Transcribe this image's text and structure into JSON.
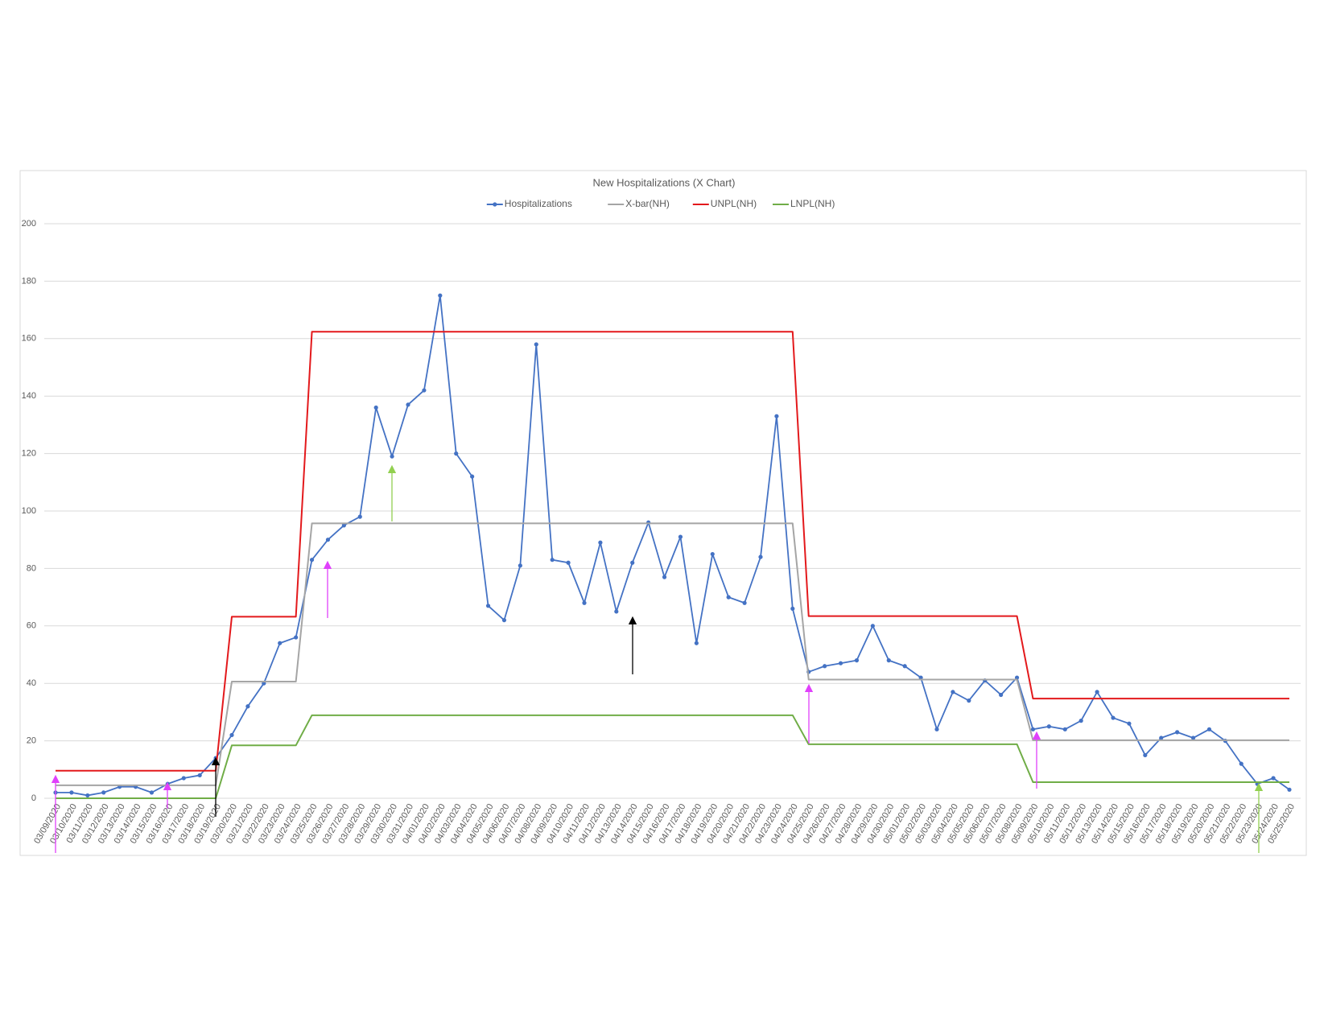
{
  "chart_data": {
    "type": "line",
    "title": "New Hospitalizations (X Chart)",
    "categories": [
      "03/09/2020",
      "03/10/2020",
      "03/11/2020",
      "03/12/2020",
      "03/13/2020",
      "03/14/2020",
      "03/15/2020",
      "03/16/2020",
      "03/17/2020",
      "03/18/2020",
      "03/19/2020",
      "03/20/2020",
      "03/21/2020",
      "03/22/2020",
      "03/23/2020",
      "03/24/2020",
      "03/25/2020",
      "03/26/2020",
      "03/27/2020",
      "03/28/2020",
      "03/29/2020",
      "03/30/2020",
      "03/31/2020",
      "04/01/2020",
      "04/02/2020",
      "04/03/2020",
      "04/04/2020",
      "04/05/2020",
      "04/06/2020",
      "04/07/2020",
      "04/08/2020",
      "04/09/2020",
      "04/10/2020",
      "04/11/2020",
      "04/12/2020",
      "04/13/2020",
      "04/14/2020",
      "04/15/2020",
      "04/16/2020",
      "04/17/2020",
      "04/18/2020",
      "04/19/2020",
      "04/20/2020",
      "04/21/2020",
      "04/22/2020",
      "04/23/2020",
      "04/24/2020",
      "04/25/2020",
      "04/26/2020",
      "04/27/2020",
      "04/28/2020",
      "04/29/2020",
      "04/30/2020",
      "05/01/2020",
      "05/02/2020",
      "05/03/2020",
      "05/04/2020",
      "05/05/2020",
      "05/06/2020",
      "05/07/2020",
      "05/08/2020",
      "05/09/2020",
      "05/10/2020",
      "05/11/2020",
      "05/12/2020",
      "05/13/2020",
      "05/14/2020",
      "05/15/2020",
      "05/16/2020",
      "05/17/2020",
      "05/18/2020",
      "05/19/2020",
      "05/20/2020",
      "05/21/2020",
      "05/22/2020",
      "05/23/2020",
      "05/24/2020",
      "05/25/2020"
    ],
    "series": [
      {
        "name": "Hospitalizations",
        "color": "#4472c4",
        "markers": true,
        "values": [
          2,
          2,
          1,
          2,
          4,
          4,
          2,
          5,
          7,
          8,
          14,
          22,
          32,
          40,
          54,
          56,
          83,
          90,
          95,
          98,
          136,
          119,
          137,
          142,
          175,
          120,
          112,
          67,
          62,
          81,
          158,
          83,
          82,
          68,
          89,
          65,
          82,
          96,
          77,
          91,
          54,
          85,
          70,
          68,
          84,
          133,
          66,
          44,
          46,
          47,
          48,
          60,
          48,
          46,
          42,
          24,
          37,
          34,
          41,
          36,
          42,
          24,
          25,
          24,
          27,
          37,
          28,
          26,
          15,
          21,
          23,
          21,
          24,
          20,
          12,
          5,
          7,
          3
        ]
      },
      {
        "name": "X-bar(NH)",
        "color": "#a5a5a5",
        "markers": false,
        "values": [
          4.5,
          4.5,
          4.5,
          4.5,
          4.5,
          4.5,
          4.5,
          4.5,
          4.5,
          4.5,
          4.5,
          40.6,
          40.6,
          40.6,
          40.6,
          40.6,
          95.7,
          95.7,
          95.7,
          95.7,
          95.7,
          95.7,
          95.7,
          95.7,
          95.7,
          95.7,
          95.7,
          95.7,
          95.7,
          95.7,
          95.7,
          95.7,
          95.7,
          95.7,
          95.7,
          95.7,
          95.7,
          95.7,
          95.7,
          95.7,
          95.7,
          95.7,
          95.7,
          95.7,
          95.7,
          95.7,
          95.7,
          41.3,
          41.3,
          41.3,
          41.3,
          41.3,
          41.3,
          41.3,
          41.3,
          41.3,
          41.3,
          41.3,
          41.3,
          41.3,
          41.3,
          20.2,
          20.2,
          20.2,
          20.2,
          20.2,
          20.2,
          20.2,
          20.2,
          20.2,
          20.2,
          20.2,
          20.2,
          20.2,
          20.2,
          20.2,
          20.2,
          20.2
        ]
      },
      {
        "name": "UNPL(NH)",
        "color": "#e3191c",
        "markers": false,
        "values": [
          9.6,
          9.6,
          9.6,
          9.6,
          9.6,
          9.6,
          9.6,
          9.6,
          9.6,
          9.6,
          9.6,
          63.2,
          63.2,
          63.2,
          63.2,
          63.2,
          162.4,
          162.4,
          162.4,
          162.4,
          162.4,
          162.4,
          162.4,
          162.4,
          162.4,
          162.4,
          162.4,
          162.4,
          162.4,
          162.4,
          162.4,
          162.4,
          162.4,
          162.4,
          162.4,
          162.4,
          162.4,
          162.4,
          162.4,
          162.4,
          162.4,
          162.4,
          162.4,
          162.4,
          162.4,
          162.4,
          162.4,
          63.4,
          63.4,
          63.4,
          63.4,
          63.4,
          63.4,
          63.4,
          63.4,
          63.4,
          63.4,
          63.4,
          63.4,
          63.4,
          63.4,
          34.7,
          34.7,
          34.7,
          34.7,
          34.7,
          34.7,
          34.7,
          34.7,
          34.7,
          34.7,
          34.7,
          34.7,
          34.7,
          34.7,
          34.7,
          34.7,
          34.7
        ]
      },
      {
        "name": "LNPL(NH)",
        "color": "#70ad47",
        "markers": false,
        "values": [
          0,
          0,
          0,
          0,
          0,
          0,
          0,
          0,
          0,
          0,
          0,
          18.4,
          18.4,
          18.4,
          18.4,
          18.4,
          28.9,
          28.9,
          28.9,
          28.9,
          28.9,
          28.9,
          28.9,
          28.9,
          28.9,
          28.9,
          28.9,
          28.9,
          28.9,
          28.9,
          28.9,
          28.9,
          28.9,
          28.9,
          28.9,
          28.9,
          28.9,
          28.9,
          28.9,
          28.9,
          28.9,
          28.9,
          28.9,
          28.9,
          28.9,
          28.9,
          28.9,
          18.8,
          18.8,
          18.8,
          18.8,
          18.8,
          18.8,
          18.8,
          18.8,
          18.8,
          18.8,
          18.8,
          18.8,
          18.8,
          18.8,
          5.6,
          5.6,
          5.6,
          5.6,
          5.6,
          5.6,
          5.6,
          5.6,
          5.6,
          5.6,
          5.6,
          5.6,
          5.6,
          5.6,
          5.6,
          5.6,
          5.6
        ]
      }
    ],
    "ylim": [
      0,
      200
    ],
    "yticks": [
      0,
      20,
      40,
      60,
      80,
      100,
      120,
      140,
      160,
      180,
      200
    ],
    "grid": true,
    "legend": "top"
  }
}
